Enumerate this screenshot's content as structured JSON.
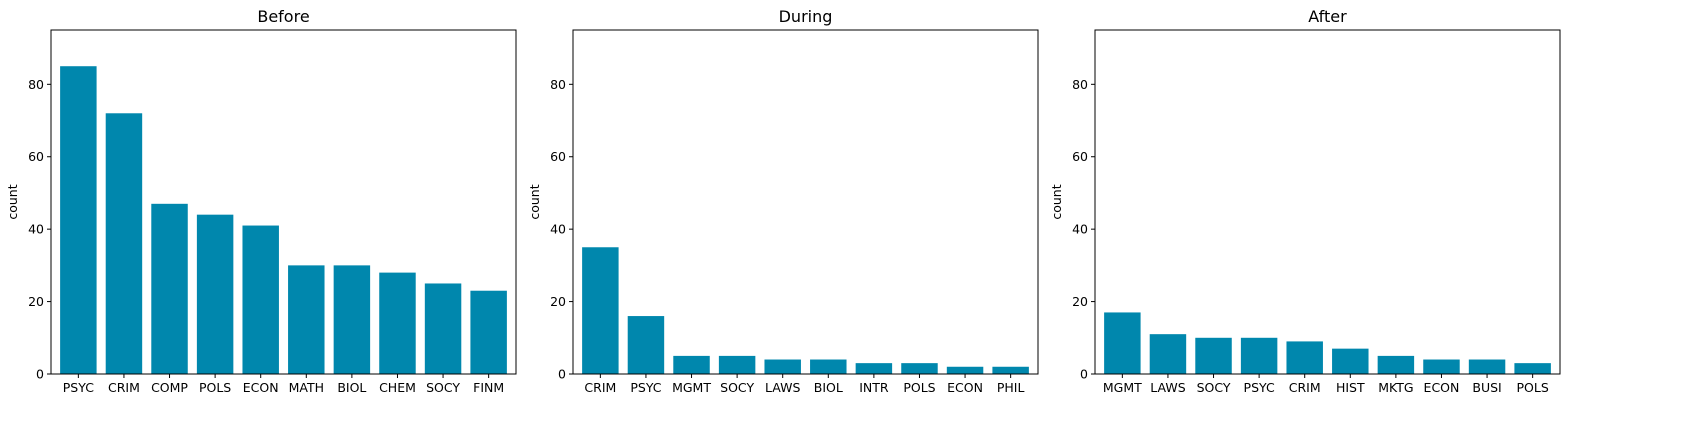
{
  "bar_color": "#0087ad",
  "chart_data": [
    {
      "type": "bar",
      "title": "Before",
      "xlabel": "",
      "ylabel": "count",
      "ylim": [
        0,
        95
      ],
      "yticks": [
        0,
        20,
        40,
        60,
        80
      ],
      "grid": false,
      "categories": [
        "PSYC",
        "CRIM",
        "COMP",
        "POLS",
        "ECON",
        "MATH",
        "BIOL",
        "CHEM",
        "SOCY",
        "FINM"
      ],
      "values": [
        85,
        72,
        47,
        44,
        41,
        30,
        30,
        28,
        25,
        23
      ]
    },
    {
      "type": "bar",
      "title": "During",
      "xlabel": "",
      "ylabel": "count",
      "ylim": [
        0,
        95
      ],
      "yticks": [
        0,
        20,
        40,
        60,
        80
      ],
      "grid": false,
      "categories": [
        "CRIM",
        "PSYC",
        "MGMT",
        "SOCY",
        "LAWS",
        "BIOL",
        "INTR",
        "POLS",
        "ECON",
        "PHIL"
      ],
      "values": [
        35,
        16,
        5,
        5,
        4,
        4,
        3,
        3,
        2,
        2
      ]
    },
    {
      "type": "bar",
      "title": "After",
      "xlabel": "",
      "ylabel": "count",
      "ylim": [
        0,
        95
      ],
      "yticks": [
        0,
        20,
        40,
        60,
        80
      ],
      "grid": false,
      "categories": [
        "MGMT",
        "LAWS",
        "SOCY",
        "PSYC",
        "CRIM",
        "HIST",
        "MKTG",
        "ECON",
        "BUSI",
        "POLS"
      ],
      "values": [
        17,
        11,
        10,
        10,
        9,
        7,
        5,
        4,
        4,
        3
      ]
    }
  ]
}
